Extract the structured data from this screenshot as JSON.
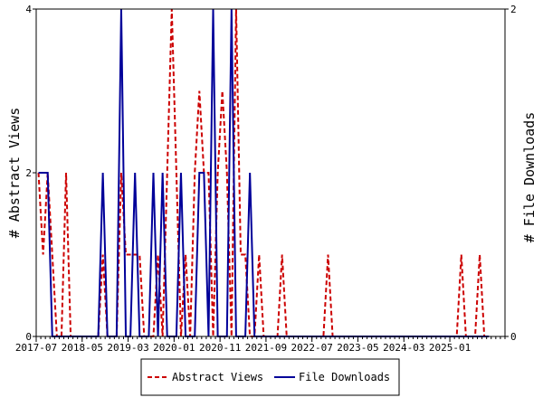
{
  "chart_data": {
    "type": "line",
    "x_start": "2017-07",
    "x_end": "2025-12",
    "xtick_labels": [
      "2017-07",
      "2018-05",
      "2019-03",
      "2020-01",
      "2020-11",
      "2021-09",
      "2022-07",
      "2023-05",
      "2024-03",
      "2025-01"
    ],
    "ylabel_left": "# Abstract Views",
    "ylabel_right": "# File Downloads",
    "ylim_left": [
      0,
      4
    ],
    "ylim_right": [
      0,
      2
    ],
    "yticks_left": [
      "0",
      "2",
      "4"
    ],
    "yticks_right": [
      "0",
      "2"
    ],
    "legend_position": "bottom-center",
    "series": [
      {
        "name": "Abstract Views",
        "axis": "left",
        "color": "#cc0000",
        "dash": "dashed",
        "points": [
          [
            "2017-07",
            2
          ],
          [
            "2017-08",
            1
          ],
          [
            "2017-09",
            2
          ],
          [
            "2017-10",
            1
          ],
          [
            "2017-11",
            0
          ],
          [
            "2017-12",
            0
          ],
          [
            "2018-01",
            2
          ],
          [
            "2018-02",
            0
          ],
          [
            "2018-03",
            0
          ],
          [
            "2018-04",
            0
          ],
          [
            "2018-05",
            0
          ],
          [
            "2018-06",
            0
          ],
          [
            "2018-07",
            0
          ],
          [
            "2018-08",
            0
          ],
          [
            "2018-09",
            1
          ],
          [
            "2018-10",
            0
          ],
          [
            "2018-11",
            0
          ],
          [
            "2018-12",
            0
          ],
          [
            "2019-01",
            2
          ],
          [
            "2019-02",
            1
          ],
          [
            "2019-03",
            1
          ],
          [
            "2019-04",
            1
          ],
          [
            "2019-05",
            1
          ],
          [
            "2019-06",
            0
          ],
          [
            "2019-07",
            0
          ],
          [
            "2019-08",
            0
          ],
          [
            "2019-09",
            1
          ],
          [
            "2019-10",
            0
          ],
          [
            "2019-11",
            2
          ],
          [
            "2019-12",
            4
          ],
          [
            "2020-01",
            2
          ],
          [
            "2020-02",
            0
          ],
          [
            "2020-03",
            1
          ],
          [
            "2020-04",
            0
          ],
          [
            "2020-05",
            2
          ],
          [
            "2020-06",
            3
          ],
          [
            "2020-07",
            2
          ],
          [
            "2020-08",
            2
          ],
          [
            "2020-09",
            0
          ],
          [
            "2020-10",
            2
          ],
          [
            "2020-11",
            3
          ],
          [
            "2020-12",
            2
          ],
          [
            "2021-01",
            0
          ],
          [
            "2021-02",
            4
          ],
          [
            "2021-03",
            1
          ],
          [
            "2021-04",
            1
          ],
          [
            "2021-05",
            0
          ],
          [
            "2021-06",
            0
          ],
          [
            "2021-07",
            1
          ],
          [
            "2021-08",
            0
          ],
          [
            "2021-09",
            0
          ],
          [
            "2021-10",
            0
          ],
          [
            "2021-11",
            0
          ],
          [
            "2021-12",
            1
          ],
          [
            "2022-01",
            0
          ],
          [
            "2022-02",
            0
          ],
          [
            "2022-03",
            0
          ],
          [
            "2022-04",
            0
          ],
          [
            "2022-05",
            0
          ],
          [
            "2022-06",
            0
          ],
          [
            "2022-07",
            0
          ],
          [
            "2022-08",
            0
          ],
          [
            "2022-09",
            0
          ],
          [
            "2022-10",
            1
          ],
          [
            "2022-11",
            0
          ],
          [
            "2022-12",
            0
          ],
          [
            "2023-01",
            0
          ],
          [
            "2023-02",
            0
          ],
          [
            "2023-03",
            0
          ],
          [
            "2023-04",
            0
          ],
          [
            "2023-05",
            0
          ],
          [
            "2023-06",
            0
          ],
          [
            "2023-07",
            0
          ],
          [
            "2023-08",
            0
          ],
          [
            "2023-09",
            0
          ],
          [
            "2023-10",
            0
          ],
          [
            "2023-11",
            0
          ],
          [
            "2023-12",
            0
          ],
          [
            "2024-01",
            0
          ],
          [
            "2024-02",
            0
          ],
          [
            "2024-03",
            0
          ],
          [
            "2024-04",
            0
          ],
          [
            "2024-05",
            0
          ],
          [
            "2024-06",
            0
          ],
          [
            "2024-07",
            0
          ],
          [
            "2024-08",
            0
          ],
          [
            "2024-09",
            0
          ],
          [
            "2024-10",
            0
          ],
          [
            "2024-11",
            0
          ],
          [
            "2024-12",
            0
          ],
          [
            "2025-01",
            0
          ],
          [
            "2025-02",
            0
          ],
          [
            "2025-03",
            1
          ],
          [
            "2025-04",
            0
          ],
          [
            "2025-05",
            0
          ],
          [
            "2025-06",
            0
          ],
          [
            "2025-07",
            1
          ],
          [
            "2025-08",
            0
          ],
          [
            "2025-09",
            0
          ]
        ]
      },
      {
        "name": "File Downloads",
        "axis": "right",
        "color": "#000099",
        "dash": "solid",
        "points": [
          [
            "2017-07",
            1
          ],
          [
            "2017-08",
            1
          ],
          [
            "2017-09",
            1
          ],
          [
            "2017-10",
            0
          ],
          [
            "2017-11",
            0
          ],
          [
            "2017-12",
            0
          ],
          [
            "2018-01",
            0
          ],
          [
            "2018-02",
            0
          ],
          [
            "2018-03",
            0
          ],
          [
            "2018-04",
            0
          ],
          [
            "2018-05",
            0
          ],
          [
            "2018-06",
            0
          ],
          [
            "2018-07",
            0
          ],
          [
            "2018-08",
            0
          ],
          [
            "2018-09",
            1
          ],
          [
            "2018-10",
            0
          ],
          [
            "2018-11",
            0
          ],
          [
            "2018-12",
            0
          ],
          [
            "2019-01",
            2
          ],
          [
            "2019-02",
            0
          ],
          [
            "2019-03",
            0
          ],
          [
            "2019-04",
            1
          ],
          [
            "2019-05",
            0
          ],
          [
            "2019-06",
            0
          ],
          [
            "2019-07",
            0
          ],
          [
            "2019-08",
            1
          ],
          [
            "2019-09",
            0
          ],
          [
            "2019-10",
            1
          ],
          [
            "2019-11",
            0
          ],
          [
            "2019-12",
            0
          ],
          [
            "2020-01",
            0
          ],
          [
            "2020-02",
            1
          ],
          [
            "2020-03",
            0
          ],
          [
            "2020-04",
            0
          ],
          [
            "2020-05",
            0
          ],
          [
            "2020-06",
            1
          ],
          [
            "2020-07",
            1
          ],
          [
            "2020-08",
            0
          ],
          [
            "2020-09",
            2
          ],
          [
            "2020-10",
            0
          ],
          [
            "2020-11",
            0
          ],
          [
            "2020-12",
            0
          ],
          [
            "2021-01",
            2
          ],
          [
            "2021-02",
            0
          ],
          [
            "2021-03",
            0
          ],
          [
            "2021-04",
            0
          ],
          [
            "2021-05",
            1
          ],
          [
            "2021-06",
            0
          ],
          [
            "2021-07",
            0
          ],
          [
            "2021-08",
            0
          ],
          [
            "2021-09",
            0
          ],
          [
            "2021-10",
            0
          ],
          [
            "2021-11",
            0
          ],
          [
            "2021-12",
            0
          ],
          [
            "2022-01",
            0
          ],
          [
            "2022-02",
            0
          ],
          [
            "2022-03",
            0
          ],
          [
            "2022-04",
            0
          ],
          [
            "2022-05",
            0
          ],
          [
            "2022-06",
            0
          ],
          [
            "2022-07",
            0
          ],
          [
            "2022-08",
            0
          ],
          [
            "2022-09",
            0
          ],
          [
            "2022-10",
            0
          ],
          [
            "2022-11",
            0
          ],
          [
            "2022-12",
            0
          ],
          [
            "2023-01",
            0
          ],
          [
            "2023-02",
            0
          ],
          [
            "2023-03",
            0
          ],
          [
            "2023-04",
            0
          ],
          [
            "2023-05",
            0
          ],
          [
            "2023-06",
            0
          ],
          [
            "2023-07",
            0
          ],
          [
            "2023-08",
            0
          ],
          [
            "2023-09",
            0
          ],
          [
            "2023-10",
            0
          ],
          [
            "2023-11",
            0
          ],
          [
            "2023-12",
            0
          ],
          [
            "2024-01",
            0
          ],
          [
            "2024-02",
            0
          ],
          [
            "2024-03",
            0
          ],
          [
            "2024-04",
            0
          ],
          [
            "2024-05",
            0
          ],
          [
            "2024-06",
            0
          ],
          [
            "2024-07",
            0
          ],
          [
            "2024-08",
            0
          ],
          [
            "2024-09",
            0
          ],
          [
            "2024-10",
            0
          ],
          [
            "2024-11",
            0
          ],
          [
            "2024-12",
            0
          ],
          [
            "2025-01",
            0
          ],
          [
            "2025-02",
            0
          ],
          [
            "2025-03",
            0
          ],
          [
            "2025-04",
            0
          ],
          [
            "2025-05",
            0
          ],
          [
            "2025-06",
            0
          ],
          [
            "2025-07",
            0
          ],
          [
            "2025-08",
            0
          ],
          [
            "2025-09",
            0
          ]
        ]
      }
    ]
  }
}
